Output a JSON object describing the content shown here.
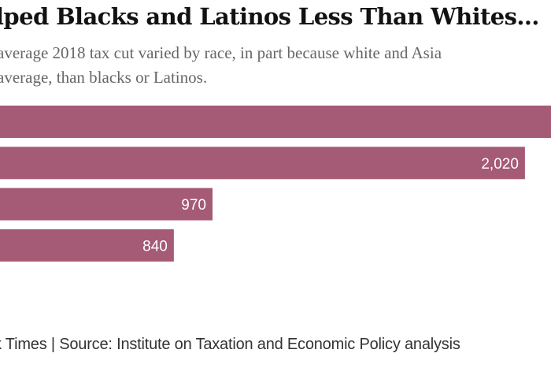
{
  "header": {
    "title": "lped Blacks and Latinos Less Than Whites…",
    "subtitle_lines": [
      "average 2018 tax cut varied by race, in part because white and Asia",
      "average, than blacks or Latinos."
    ]
  },
  "footer": {
    "credit": "k Times | Source: Institute on Taxation and Economic Policy analysis"
  },
  "chart_data": {
    "type": "bar",
    "orientation": "horizontal",
    "title": "lped Blacks and Latinos Less Than Whites…",
    "bar_color": "#a55a76",
    "label_color": "#ffffff",
    "categories": [
      "",
      "",
      "",
      ""
    ],
    "values": [
      null,
      2020,
      970,
      840
    ],
    "labels": [
      "",
      "2,020",
      "970",
      "840"
    ],
    "notes": "Category labels and the first bar's value are cropped out of view; first bar extends past the right edge (greater than 2,020)."
  }
}
